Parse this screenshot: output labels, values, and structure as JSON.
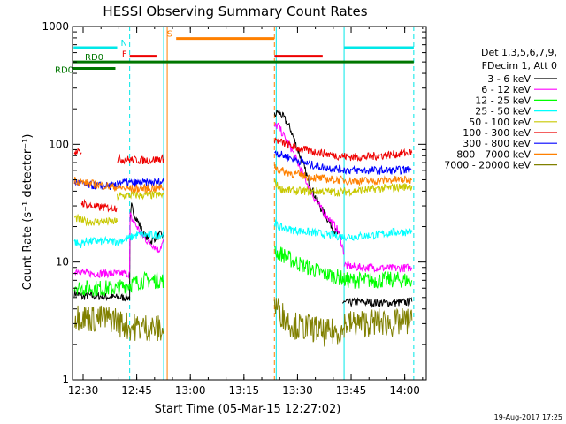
{
  "chart_data": {
    "type": "line",
    "title": "HESSI Observing Summary Count Rates",
    "xlabel": "Start Time (05-Mar-15 12:27:02)",
    "ylabel": "Count Rate (s⁻¹ detector⁻¹)",
    "ylog": true,
    "ylim": [
      1,
      1000
    ],
    "xlim_minutes": [
      0,
      99
    ],
    "x_tick_labels": [
      "12:30",
      "12:45",
      "13:00",
      "13:15",
      "13:30",
      "13:45",
      "14:00"
    ],
    "x_tick_minutes": [
      2.97,
      17.97,
      32.97,
      47.97,
      62.97,
      77.97,
      92.97
    ],
    "y_tick_labels": [
      "1",
      "10",
      "100",
      "1000"
    ],
    "y_tick_values": [
      1,
      10,
      100,
      1000
    ],
    "footer_date": "19-Aug-2017 17:25",
    "legend": {
      "header": [
        "Det 1,3,5,6,7,9,",
        "FDecim 1, Att 0"
      ],
      "entries": [
        {
          "label": "3 - 6 keV",
          "color": "#000000"
        },
        {
          "label": "6 - 12 keV",
          "color": "#ff00ff"
        },
        {
          "label": "12 - 25 keV",
          "color": "#00ff00"
        },
        {
          "label": "25 - 50 keV",
          "color": "#00ffff"
        },
        {
          "label": "50 - 100 keV",
          "color": "#c8c800"
        },
        {
          "label": "100 - 300 keV",
          "color": "#ee0000"
        },
        {
          "label": "300 - 800 keV",
          "color": "#0000ff"
        },
        {
          "label": "800 - 7000 keV",
          "color": "#ff8000"
        },
        {
          "label": "7000 - 20000 keV",
          "color": "#808000"
        }
      ]
    },
    "series": [
      {
        "name": "3 - 6 keV",
        "color": "#000000",
        "segments": [
          {
            "x": [
              0.5,
              2.0,
              3.0,
              3.5,
              12.5
            ],
            "y": [
              5.5,
              5.2,
              5.0,
              5.2,
              5.0
            ]
          },
          {
            "x": [
              12.5,
              16.0,
              16.1,
              16.5,
              17.0,
              18.0,
              19.0,
              20.0,
              21.0,
              22.0,
              23.0,
              24.5,
              25.5
            ],
            "y": [
              5.0,
              5.0,
              21,
              30,
              27,
              23,
              20,
              17,
              16,
              15,
              16,
              17,
              17
            ]
          },
          {
            "x": [
              56.5,
              57.5,
              59.0,
              61.0,
              62.5,
              64.0,
              65.5,
              67.0,
              68.5,
              70.0,
              71.5,
              73.0,
              74.5,
              75.5
            ],
            "y": [
              175,
              190,
              170,
              135,
              100,
              75,
              55,
              42,
              33,
              27,
              23,
              19,
              17,
              16
            ]
          },
          {
            "x": [
              75.5,
              77.0,
              80.0,
              85.0,
              90.0,
              95.0
            ],
            "y": [
              4.5,
              4.5,
              4.6,
              4.5,
              4.5,
              4.6
            ]
          }
        ]
      },
      {
        "name": "6 - 12 keV",
        "color": "#ff00ff",
        "segments": [
          {
            "x": [
              0.5,
              2.0,
              3.5,
              12.5
            ],
            "y": [
              8.5,
              8.5,
              8.0,
              8.0
            ]
          },
          {
            "x": [
              12.5,
              16.0,
              16.1,
              17.0,
              18.0,
              19.5,
              21.0,
              22.5,
              24.0,
              25.5
            ],
            "y": [
              8.0,
              8.0,
              25,
              22,
              20,
              17,
              15,
              14,
              12.5,
              15
            ]
          },
          {
            "x": [
              56.5,
              57.5,
              59.0,
              61.0,
              62.5,
              64.0,
              65.5,
              67.0,
              68.5,
              70.0,
              71.5,
              73.0,
              74.5,
              76.0
            ],
            "y": [
              140,
              145,
              120,
              95,
              75,
              60,
              48,
              38,
              32,
              27,
              24,
              21,
              18,
              12
            ]
          },
          {
            "x": [
              76.0,
              77.5,
              80.0,
              85.0,
              90.0,
              95.0
            ],
            "y": [
              9.5,
              9.2,
              9.0,
              9.0,
              8.8,
              9.0
            ]
          }
        ]
      },
      {
        "name": "12 - 25 keV",
        "color": "#00ff00",
        "segments": [
          {
            "x": [
              0.5,
              2.0,
              3.5,
              12.5
            ],
            "y": [
              6.5,
              6.0,
              6.0,
              6.0
            ]
          },
          {
            "x": [
              12.5,
              16.0,
              20.0,
              25.5
            ],
            "y": [
              6.0,
              6.5,
              7.0,
              7.0
            ]
          },
          {
            "x": [
              56.5,
              57.5,
              59.0,
              61.0,
              62.5,
              64.0,
              66.0,
              68.0,
              70.0,
              72.0,
              74.0,
              76.0
            ],
            "y": [
              12,
              12,
              11.5,
              10.5,
              10,
              9.5,
              9,
              8.5,
              8,
              7.8,
              7.5,
              7.2
            ]
          },
          {
            "x": [
              76.0,
              80.0,
              85.0,
              90.0,
              95.0
            ],
            "y": [
              7.0,
              7.0,
              7.0,
              7.1,
              7.0
            ]
          }
        ]
      },
      {
        "name": "25 - 50 keV",
        "color": "#00ffff",
        "segments": [
          {
            "x": [
              0.5,
              2.0,
              3.5,
              12.5
            ],
            "y": [
              15,
              14,
              15,
              15
            ]
          },
          {
            "x": [
              12.5,
              16.0,
              18.0,
              21.0,
              25.5
            ],
            "y": [
              15,
              16,
              17,
              17,
              17
            ]
          },
          {
            "x": [
              56.5,
              57.5,
              60.0,
              63.0,
              66.0,
              69.0,
              72.0,
              75.0,
              77.0
            ],
            "y": [
              22,
              20,
              19,
              18.5,
              18,
              17.5,
              17,
              16.5,
              16.5
            ]
          },
          {
            "x": [
              77.0,
              80.0,
              85.0,
              90.0,
              95.0
            ],
            "y": [
              16.5,
              16.5,
              17,
              18,
              18
            ]
          }
        ]
      },
      {
        "name": "50 - 100 keV",
        "color": "#c8c800",
        "segments": [
          {
            "x": [
              0.5,
              2.0,
              3.5,
              12.5
            ],
            "y": [
              24,
              23,
              22,
              22
            ]
          },
          {
            "x": [
              12.5,
              16.0,
              20.0,
              25.5
            ],
            "y": [
              36,
              37,
              37,
              37
            ]
          },
          {
            "x": [
              56.5,
              58.0,
              62.0,
              66.0,
              70.0,
              74.0,
              78.0,
              82.0,
              86.0,
              90.0,
              95.0
            ],
            "y": [
              48,
              42,
              40,
              40,
              40,
              39,
              40,
              41,
              42,
              43,
              44
            ]
          }
        ]
      },
      {
        "name": "100 - 300 keV",
        "color": "#ee0000",
        "segments": [
          {
            "x": [
              0.5,
              2.0,
              2.5
            ],
            "y": [
              85,
              85,
              85
            ]
          },
          {
            "x": [
              2.5,
              5.0,
              8.0,
              12.5
            ],
            "y": [
              32,
              30,
              29,
              29
            ]
          },
          {
            "x": [
              12.5,
              16.0,
              20.0,
              25.5
            ],
            "y": [
              75,
              74,
              73,
              75
            ]
          },
          {
            "x": [
              56.5,
              58.0,
              62.0,
              66.0,
              70.0,
              74.0,
              78.0,
              82.0,
              86.0,
              90.0,
              95.0
            ],
            "y": [
              110,
              105,
              95,
              88,
              84,
              80,
              78,
              78,
              80,
              82,
              85
            ]
          }
        ]
      },
      {
        "name": "300 - 800 keV",
        "color": "#0000ff",
        "segments": [
          {
            "x": [
              0.5,
              2.0,
              3.5,
              12.5
            ],
            "y": [
              48,
              47,
              45,
              44
            ]
          },
          {
            "x": [
              12.5,
              16.0,
              20.0,
              25.5
            ],
            "y": [
              48,
              47,
              47,
              48
            ]
          },
          {
            "x": [
              56.5,
              58.0,
              62.0,
              66.0,
              70.0,
              74.0,
              78.0,
              82.0,
              86.0,
              90.0,
              95.0
            ],
            "y": [
              88,
              82,
              75,
              68,
              64,
              62,
              60,
              60,
              60,
              60,
              61
            ]
          }
        ]
      },
      {
        "name": "800 - 7000 keV",
        "color": "#ff8000",
        "segments": [
          {
            "x": [
              0.5,
              2.0,
              3.5,
              8.0,
              12.5
            ],
            "y": [
              50,
              48,
              47,
              45,
              43
            ]
          },
          {
            "x": [
              12.5,
              16.0,
              20.0,
              25.5
            ],
            "y": [
              43,
              42,
              42,
              43
            ]
          },
          {
            "x": [
              56.5,
              58.0,
              62.0,
              66.0,
              70.0,
              74.0,
              78.0,
              82.0,
              86.0,
              90.0,
              95.0
            ],
            "y": [
              65,
              60,
              56,
              53,
              51,
              50,
              49,
              49,
              49,
              50,
              50
            ]
          }
        ]
      },
      {
        "name": "7000 - 20000 keV",
        "color": "#808000",
        "segments": [
          {
            "x": [
              0.5,
              3.0,
              6.0,
              9.0,
              12.5
            ],
            "y": [
              3.5,
              3.4,
              3.3,
              3.3,
              3.3
            ]
          },
          {
            "x": [
              12.5,
              14.0,
              16.0,
              18.0,
              20.0,
              22.0,
              24.0,
              25.5
            ],
            "y": [
              3.0,
              3.0,
              2.8,
              2.8,
              2.8,
              2.8,
              2.7,
              2.6
            ]
          },
          {
            "x": [
              56.5,
              58.0,
              60.0,
              62.0,
              64.0,
              66.0,
              68.0,
              70.0,
              72.0,
              74.0,
              76.0
            ],
            "y": [
              4.3,
              3.8,
              3.2,
              2.9,
              2.8,
              2.8,
              2.7,
              2.5,
              2.5,
              2.6,
              2.6
            ]
          },
          {
            "x": [
              76.0,
              80.0,
              85.0,
              90.0,
              95.0
            ],
            "y": [
              3.0,
              3.0,
              3.1,
              3.0,
              3.2
            ]
          }
        ]
      }
    ],
    "state_bars": [
      {
        "label": "N",
        "color": "#00e8e8",
        "level": 660,
        "segments": [
          [
            0.3,
            12.5
          ],
          [
            76.0,
            95.5
          ]
        ]
      },
      {
        "label": "S",
        "color": "#ff8000",
        "level": 790,
        "segments": [
          [
            29.0,
            56.5
          ]
        ]
      },
      {
        "label": "F",
        "color": "#ee0000",
        "level": 560,
        "segments": [
          [
            16.0,
            23.5
          ],
          [
            56.5,
            70.0
          ]
        ]
      },
      {
        "label": "RD0",
        "color": "#007700",
        "level": 500,
        "segments": [
          [
            0.0,
            95.5
          ]
        ]
      },
      {
        "label": "RD0",
        "color": "#007700",
        "level": 440,
        "segments": [
          [
            0.0,
            12.0
          ]
        ]
      }
    ],
    "vertical_markers": [
      {
        "x": 0.0,
        "color": "#00e8e8",
        "style": "solid"
      },
      {
        "x": 16.0,
        "color": "#00e8e8",
        "style": "dashed"
      },
      {
        "x": 25.5,
        "color": "#00e8e8",
        "style": "solid"
      },
      {
        "x": 26.5,
        "color": "#ff8000",
        "style": "solid"
      },
      {
        "x": 56.5,
        "color": "#ff8000",
        "style": "dashed"
      },
      {
        "x": 57.0,
        "color": "#00e8e8",
        "style": "solid"
      },
      {
        "x": 76.0,
        "color": "#00e8e8",
        "style": "solid"
      },
      {
        "x": 95.5,
        "color": "#00e8e8",
        "style": "dashed"
      }
    ]
  }
}
